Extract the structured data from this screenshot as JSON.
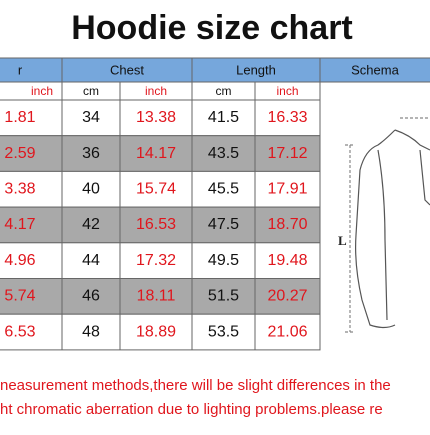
{
  "header": {
    "title": "Hoodie size chart"
  },
  "table": {
    "groups": [
      "r",
      "Chest",
      "Length",
      "Schema"
    ],
    "units": [
      "inch",
      "cm",
      "inch",
      "cm",
      "inch"
    ],
    "rows": [
      [
        "1.81",
        "34",
        "13.38",
        "41.5",
        "16.33"
      ],
      [
        "2.59",
        "36",
        "14.17",
        "43.5",
        "17.12"
      ],
      [
        "3.38",
        "40",
        "15.74",
        "45.5",
        "17.91"
      ],
      [
        "4.17",
        "42",
        "16.53",
        "47.5",
        "18.70"
      ],
      [
        "4.96",
        "44",
        "17.32",
        "49.5",
        "19.48"
      ],
      [
        "5.74",
        "46",
        "18.11",
        "51.5",
        "20.27"
      ],
      [
        "6.53",
        "48",
        "18.89",
        "53.5",
        "21.06"
      ]
    ]
  },
  "schematic": {
    "length_label": "L"
  },
  "footer": {
    "lines": [
      "neasurement methods,there will be slight differences in the",
      "ht chromatic aberration due to lighting problems.please re"
    ]
  }
}
